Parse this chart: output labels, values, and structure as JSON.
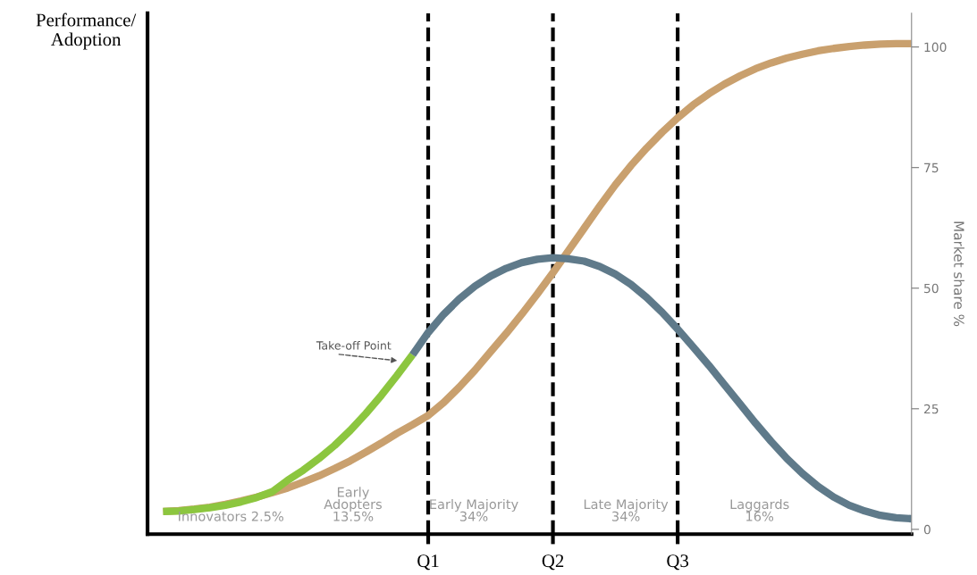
{
  "chart_data": {
    "type": "line",
    "ylabel": "Performance/\nAdoption",
    "y2label": "Market share %",
    "categories": [
      null,
      null,
      null,
      null,
      null,
      null,
      null,
      null,
      null,
      null,
      null,
      null,
      null,
      null,
      null,
      null,
      null,
      "Q1",
      null,
      null,
      null,
      null,
      null,
      null,
      null,
      "Q2",
      null,
      null,
      null,
      null,
      null,
      null,
      null,
      "Q3",
      null,
      null,
      null,
      null,
      null,
      null,
      null,
      null,
      null,
      null,
      null,
      null,
      null,
      null,
      null
    ],
    "y2lim": [
      -1,
      107
    ],
    "y2ticks": [
      0,
      25,
      50,
      75,
      100
    ],
    "series": [
      {
        "color": "#c9a06e",
        "axis": "y2",
        "values": [
          3.7,
          3.9,
          4.2,
          4.6,
          5.2,
          5.9,
          6.7,
          7.6,
          8.6,
          9.8,
          11.1,
          12.6,
          14.2,
          16,
          17.9,
          19.9,
          21.7,
          23.6,
          26.3,
          29.5,
          33.0,
          36.8,
          40.6,
          44.6,
          48.8,
          53.2,
          57.8,
          62.4,
          67,
          71.4,
          75.4,
          79,
          82.3,
          85.3,
          88,
          90.3,
          92.3,
          94,
          95.5,
          96.7,
          97.7,
          98.5,
          99.2,
          99.7,
          100.1,
          100.4,
          100.6,
          100.7,
          100.7
        ]
      },
      {
        "color": "#8cc63f",
        "axis": "y2",
        "values": [
          3.7,
          3.8,
          4.1,
          4.5,
          5.0,
          5.7,
          6.6,
          7.8,
          10.2,
          12.3,
          14.7,
          17.4,
          20.5,
          24.0,
          27.8,
          31.9,
          36.2,
          null,
          null,
          null,
          null,
          null,
          null,
          null,
          null,
          null,
          null,
          null,
          null,
          null,
          null,
          null,
          null,
          null,
          null,
          null,
          null,
          null,
          null,
          null,
          null,
          null,
          null,
          null,
          null,
          null,
          null,
          null,
          null
        ]
      },
      {
        "color": "#5f7a8a",
        "axis": "y2",
        "values": [
          null,
          null,
          null,
          null,
          null,
          null,
          null,
          null,
          null,
          null,
          null,
          null,
          null,
          null,
          null,
          null,
          36.2,
          40.8,
          44.6,
          47.8,
          50.4,
          52.5,
          54.1,
          55.3,
          56.0,
          56.3,
          56.1,
          55.6,
          54.5,
          52.9,
          50.8,
          48.1,
          45.0,
          41.5,
          37.8,
          34.0,
          30.0,
          26.0,
          22.0,
          18.2,
          14.7,
          11.6,
          8.9,
          6.7,
          5.0,
          3.8,
          2.9,
          2.4,
          2.2
        ]
      }
    ],
    "ref_lines": [
      {
        "axis": "x",
        "value": "Q1",
        "color": "#000000",
        "line_style": "dashed"
      },
      {
        "axis": "x",
        "value": "Q2",
        "color": "#000000",
        "line_style": "dashed"
      },
      {
        "axis": "x",
        "value": "Q3",
        "color": "#000000",
        "line_style": "dashed"
      }
    ],
    "annotations": [
      "Innovators 2.5%",
      "Early\nAdopters\n13.5%",
      "Early Majority\n34%",
      "Late Majority\n34%",
      "Laggards\n16%",
      "Take-off Point"
    ],
    "marker": "none",
    "line_style": "solid"
  }
}
